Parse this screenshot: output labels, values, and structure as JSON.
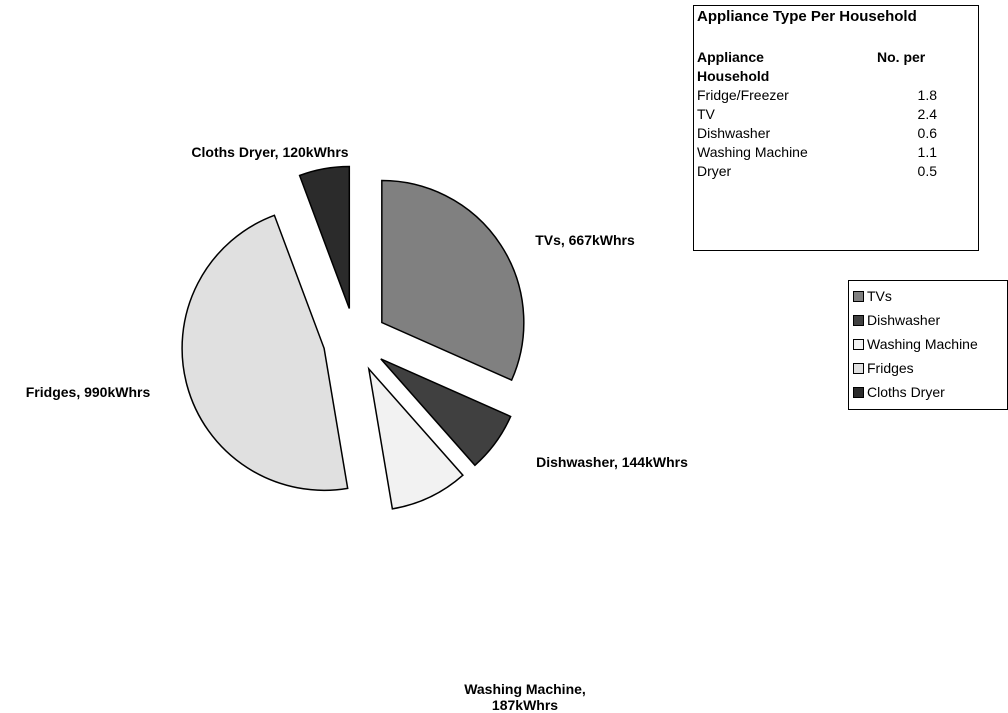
{
  "chart_data": {
    "type": "pie",
    "categories": [
      "TVs",
      "Dishwasher",
      "Washing Machine",
      "Fridges",
      "Cloths Dryer"
    ],
    "values": [
      667,
      144,
      187,
      990,
      120
    ],
    "value_labels": [
      "TVs, 667kWhrs",
      "Dishwasher, 144kWhrs",
      "Washing Machine, 187kWhrs",
      "Fridges, 990kWhrs",
      "Cloths Dryer, 120kWhrs"
    ],
    "colors": [
      "#808080",
      "#404040",
      "#f2f2f2",
      "#e0e0e0",
      "#2b2b2b"
    ],
    "legend": "right"
  },
  "text_box": {
    "title": "Appliance Type Per Household",
    "header": [
      "Appliance",
      "No. per"
    ],
    "header_wrap": "Household",
    "rows": [
      [
        "Fridge/Freezer",
        "1.8"
      ],
      [
        "TV",
        "2.4"
      ],
      [
        "Dishwasher",
        "0.6"
      ],
      [
        "Washing Machine",
        "1.1"
      ],
      [
        "Dryer",
        "0.5"
      ]
    ]
  }
}
